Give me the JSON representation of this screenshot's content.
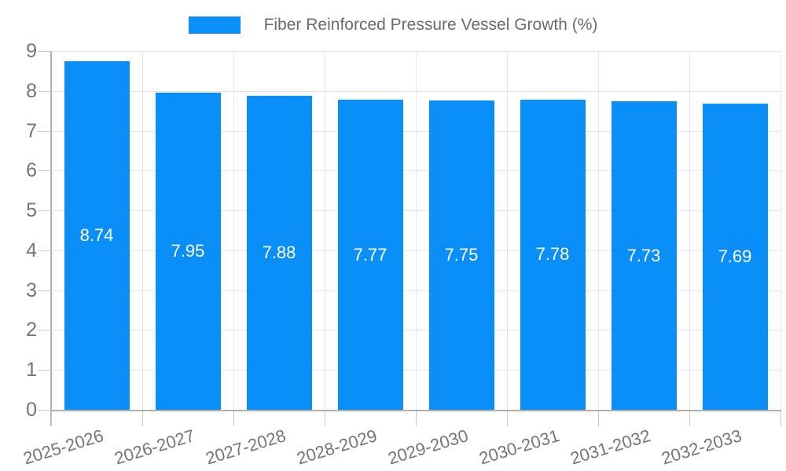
{
  "legend": {
    "series_label": "Fiber Reinforced Pressure Vessel Growth (%)"
  },
  "chart_data": {
    "type": "bar",
    "title": "Fiber Reinforced Pressure Vessel Growth (%)",
    "categories": [
      "2025-2026",
      "2026-2027",
      "2027-2028",
      "2028-2029",
      "2029-2030",
      "2030-2031",
      "2031-2032",
      "2032-2033"
    ],
    "values": [
      8.74,
      7.95,
      7.88,
      7.77,
      7.75,
      7.78,
      7.73,
      7.69
    ],
    "value_labels": [
      "8.74",
      "7.95",
      "7.88",
      "7.77",
      "7.75",
      "7.78",
      "7.73",
      "7.69"
    ],
    "xlabel": "",
    "ylabel": "",
    "ylim": [
      0,
      9
    ],
    "yticks": [
      0,
      1,
      2,
      3,
      4,
      5,
      6,
      7,
      8,
      9
    ],
    "grid": true,
    "legend_position": "top-center",
    "legend_entries": [
      "Fiber Reinforced Pressure Vessel Growth (%)"
    ],
    "x_label_rotation_deg": -17
  },
  "colors": {
    "background": "#ffffff",
    "bar": "#0a8ff9",
    "gridline": "#e6e6e6",
    "axis_line": "#b0b0b0",
    "tick_mark": "#c9c9c9",
    "tick_label_text": "#757575",
    "legend_text": "#6b6b6b",
    "value_label_text": "#ffffff"
  }
}
